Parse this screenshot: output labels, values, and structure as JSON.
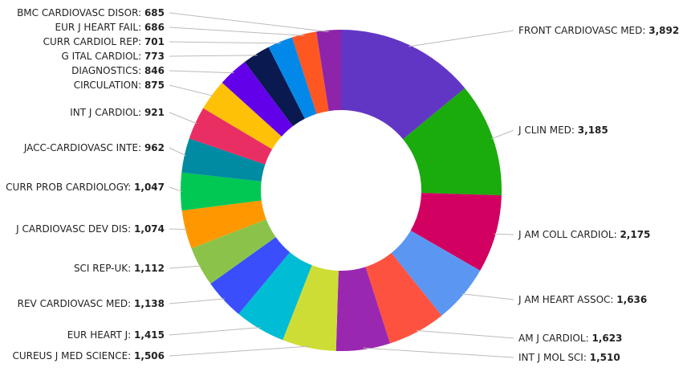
{
  "chart_data": {
    "type": "pie",
    "donut": true,
    "legend": "none",
    "slices": [
      {
        "label": "FRONT CARDIOVASC MED",
        "value": 3892,
        "value_text": "3,892",
        "color": "#6236c5"
      },
      {
        "label": "J CLIN MED",
        "value": 3185,
        "value_text": "3,185",
        "color": "#1aab0c"
      },
      {
        "label": "J AM COLL CARDIOL",
        "value": 2175,
        "value_text": "2,175",
        "color": "#d10061"
      },
      {
        "label": "J AM HEART ASSOC",
        "value": 1636,
        "value_text": "1,636",
        "color": "#5b97f2"
      },
      {
        "label": "AM J CARDIOL",
        "value": 1623,
        "value_text": "1,623",
        "color": "#fd5240"
      },
      {
        "label": "INT J MOL SCI",
        "value": 1510,
        "value_text": "1,510",
        "color": "#9a27b0"
      },
      {
        "label": "CUREUS J MED SCIENCE",
        "value": 1506,
        "value_text": "1,506",
        "color": "#cddd35"
      },
      {
        "label": "EUR HEART J",
        "value": 1415,
        "value_text": "1,415",
        "color": "#00bcd4"
      },
      {
        "label": "REV CARDIOVASC MED",
        "value": 1138,
        "value_text": "1,138",
        "color": "#3a4efc"
      },
      {
        "label": "SCI REP-UK",
        "value": 1112,
        "value_text": "1,112",
        "color": "#8bc34a"
      },
      {
        "label": "J CARDIOVASC DEV DIS",
        "value": 1074,
        "value_text": "1,074",
        "color": "#ff9800"
      },
      {
        "label": "CURR PROB CARDIOLOGY",
        "value": 1047,
        "value_text": "1,047",
        "color": "#00c853"
      },
      {
        "label": "JACC-CARDIOVASC INTE",
        "value": 962,
        "value_text": "962",
        "color": "#008ba3"
      },
      {
        "label": "INT J CARDIOL",
        "value": 921,
        "value_text": "921",
        "color": "#e92e63"
      },
      {
        "label": "CIRCULATION",
        "value": 875,
        "value_text": "875",
        "color": "#ffc107"
      },
      {
        "label": "DIAGNOSTICS",
        "value": 846,
        "value_text": "846",
        "color": "#6200ea"
      },
      {
        "label": "G ITAL CARDIOL",
        "value": 773,
        "value_text": "773",
        "color": "#0a1950"
      },
      {
        "label": "CURR CARDIOL REP",
        "value": 701,
        "value_text": "701",
        "color": "#0288e8"
      },
      {
        "label": "EUR J HEART FAIL",
        "value": 686,
        "value_text": "686",
        "color": "#ff5722"
      },
      {
        "label": "BMC CARDIOVASC DISOR",
        "value": 685,
        "value_text": "685",
        "color": "#8e24aa"
      }
    ]
  }
}
